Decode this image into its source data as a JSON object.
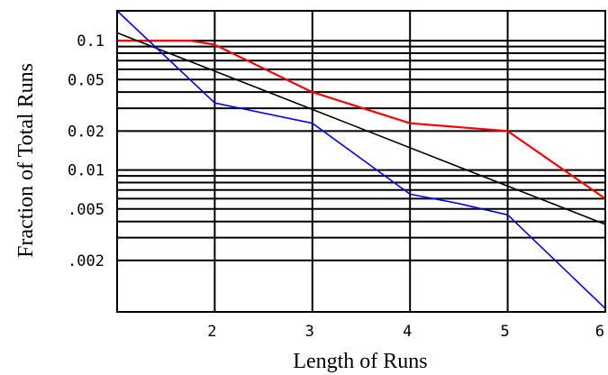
{
  "chart_data": {
    "type": "line",
    "xlabel": "Length of Runs",
    "ylabel": "Fraction of  Total Runs",
    "xlim": [
      1,
      6
    ],
    "ylim": [
      0.0008,
      0.17
    ],
    "log_y": true,
    "grid": true,
    "x_ticks": [
      2,
      3,
      4,
      5,
      6
    ],
    "x_tick_labels": [
      "2",
      "3",
      "4",
      "5",
      "6"
    ],
    "y_ticks": [
      0.1,
      0.05,
      0.02,
      0.01,
      0.005,
      0.002
    ],
    "y_tick_labels": [
      "0.1",
      "0.05",
      "0.02",
      "0.01",
      ".005",
      ".002"
    ],
    "y_gridlines": [
      0.1,
      0.09,
      0.08,
      0.07,
      0.06,
      0.05,
      0.04,
      0.03,
      0.02,
      0.01,
      0.009,
      0.008,
      0.007,
      0.006,
      0.005,
      0.004,
      0.003,
      0.002
    ],
    "series": [
      {
        "color": "#ff0000",
        "x": [
          1,
          1.75,
          2,
          3,
          4,
          5,
          6
        ],
        "y": [
          0.1,
          0.1,
          0.093,
          0.04,
          0.023,
          0.02,
          0.006
        ]
      },
      {
        "color": "#000000",
        "x": [
          1,
          6
        ],
        "y": [
          0.115,
          0.0038
        ]
      },
      {
        "color": "#0000ff",
        "x": [
          1,
          2,
          3,
          4,
          4.5,
          5,
          6
        ],
        "y": [
          0.17,
          0.033,
          0.023,
          0.0065,
          0.0055,
          0.0045,
          0.00085
        ]
      }
    ]
  }
}
